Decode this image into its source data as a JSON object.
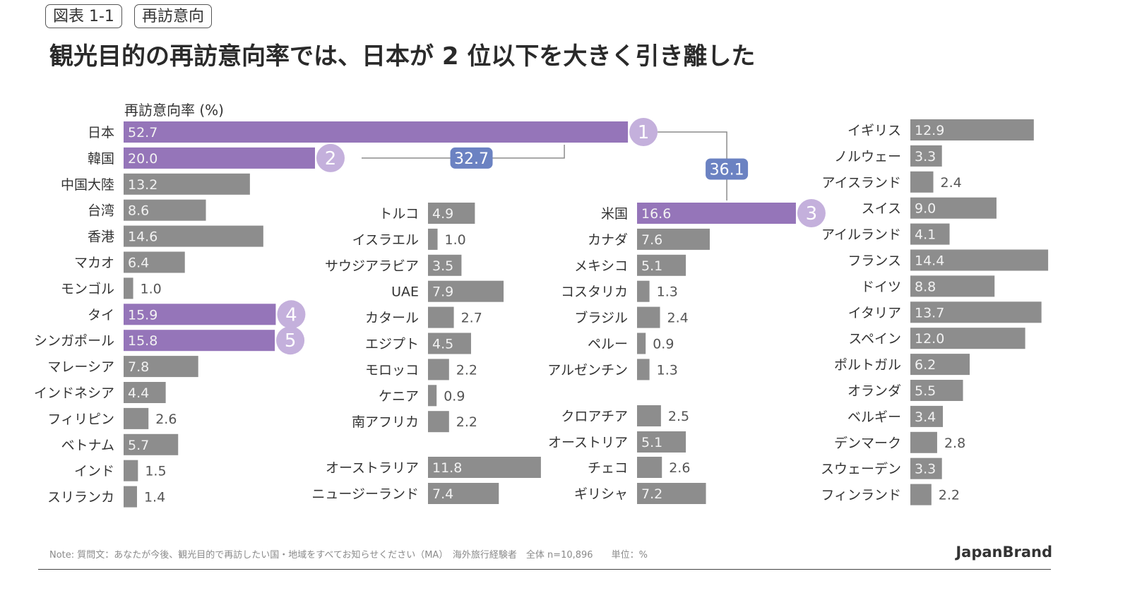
{
  "header": {
    "figure_tag": "図表 1-1",
    "topic_tag": "再訪意向",
    "headline": "観光目的の再訪意向率では、日本が 2 位以下を大きく引き離した"
  },
  "axis_caption": "再訪意向率 (%)",
  "colors": {
    "highlight": "#9575b9",
    "bar": "#8d8d8d",
    "rank_badge": "#c4b0dc",
    "gap_badge": "#6b82c2",
    "connector": "#8c8c8c"
  },
  "chart_data": {
    "type": "bar",
    "orientation": "horizontal",
    "unit": "%",
    "columns": [
      {
        "name": "asia",
        "rows": [
          {
            "label": "日本",
            "value": 52.7,
            "highlight": true,
            "rank": "1"
          },
          {
            "label": "韓国",
            "value": 20.0,
            "highlight": true,
            "rank": "2"
          },
          {
            "label": "中国大陸",
            "value": 13.2
          },
          {
            "label": "台湾",
            "value": 8.6
          },
          {
            "label": "香港",
            "value": 14.6
          },
          {
            "label": "マカオ",
            "value": 6.4
          },
          {
            "label": "モンゴル",
            "value": 1.0
          },
          {
            "label": "タイ",
            "value": 15.9,
            "highlight": true,
            "rank": "4"
          },
          {
            "label": "シンガポール",
            "value": 15.8,
            "highlight": true,
            "rank": "5"
          },
          {
            "label": "マレーシア",
            "value": 7.8
          },
          {
            "label": "インドネシア",
            "value": 4.4
          },
          {
            "label": "フィリピン",
            "value": 2.6
          },
          {
            "label": "ベトナム",
            "value": 5.7
          },
          {
            "label": "インド",
            "value": 1.5
          },
          {
            "label": "スリランカ",
            "value": 1.4
          }
        ]
      },
      {
        "name": "middle-east-africa-oceania",
        "rows": [
          {
            "label": "トルコ",
            "value": 4.9
          },
          {
            "label": "イスラエル",
            "value": 1.0
          },
          {
            "label": "サウジアラビア",
            "value": 3.5
          },
          {
            "label": "UAE",
            "value": 7.9
          },
          {
            "label": "カタール",
            "value": 2.7
          },
          {
            "label": "エジプト",
            "value": 4.5
          },
          {
            "label": "モロッコ",
            "value": 2.2
          },
          {
            "label": "ケニア",
            "value": 0.9
          },
          {
            "label": "南アフリカ",
            "value": 2.2
          },
          {
            "label": "オーストラリア",
            "value": 11.8
          },
          {
            "label": "ニュージーランド",
            "value": 7.4
          }
        ]
      },
      {
        "name": "americas-europe",
        "rows": [
          {
            "label": "米国",
            "value": 16.6,
            "highlight": true,
            "rank": "3"
          },
          {
            "label": "カナダ",
            "value": 7.6
          },
          {
            "label": "メキシコ",
            "value": 5.1
          },
          {
            "label": "コスタリカ",
            "value": 1.3
          },
          {
            "label": "ブラジル",
            "value": 2.4
          },
          {
            "label": "ペルー",
            "value": 0.9
          },
          {
            "label": "アルゼンチン",
            "value": 1.3
          },
          {
            "label": "クロアチア",
            "value": 2.5
          },
          {
            "label": "オーストリア",
            "value": 5.1
          },
          {
            "label": "チェコ",
            "value": 2.6
          },
          {
            "label": "ギリシャ",
            "value": 7.2
          }
        ]
      },
      {
        "name": "europe",
        "rows": [
          {
            "label": "イギリス",
            "value": 12.9
          },
          {
            "label": "ノルウェー",
            "value": 3.3
          },
          {
            "label": "アイスランド",
            "value": 2.4
          },
          {
            "label": "スイス",
            "value": 9.0
          },
          {
            "label": "アイルランド",
            "value": 4.1
          },
          {
            "label": "フランス",
            "value": 14.4
          },
          {
            "label": "ドイツ",
            "value": 8.8
          },
          {
            "label": "イタリア",
            "value": 13.7
          },
          {
            "label": "スペイン",
            "value": 12.0
          },
          {
            "label": "ポルトガル",
            "value": 6.2
          },
          {
            "label": "オランダ",
            "value": 5.5
          },
          {
            "label": "ベルギー",
            "value": 3.4
          },
          {
            "label": "デンマーク",
            "value": 2.8
          },
          {
            "label": "スウェーデン",
            "value": 3.3
          },
          {
            "label": "フィンランド",
            "value": 2.2
          }
        ]
      }
    ],
    "annotations": [
      {
        "label": "32.7",
        "from": "日本",
        "to": "韓国"
      },
      {
        "label": "36.1",
        "from": "日本",
        "to": "米国"
      }
    ]
  },
  "footer": {
    "note": "Note: 質問文：あなたが今後、観光目的で再訪したい国・地域をすべてお知らせください（MA）　海外旅行経験者　全体 n=10,896　　単位：%",
    "brand": "JapanBrand"
  }
}
